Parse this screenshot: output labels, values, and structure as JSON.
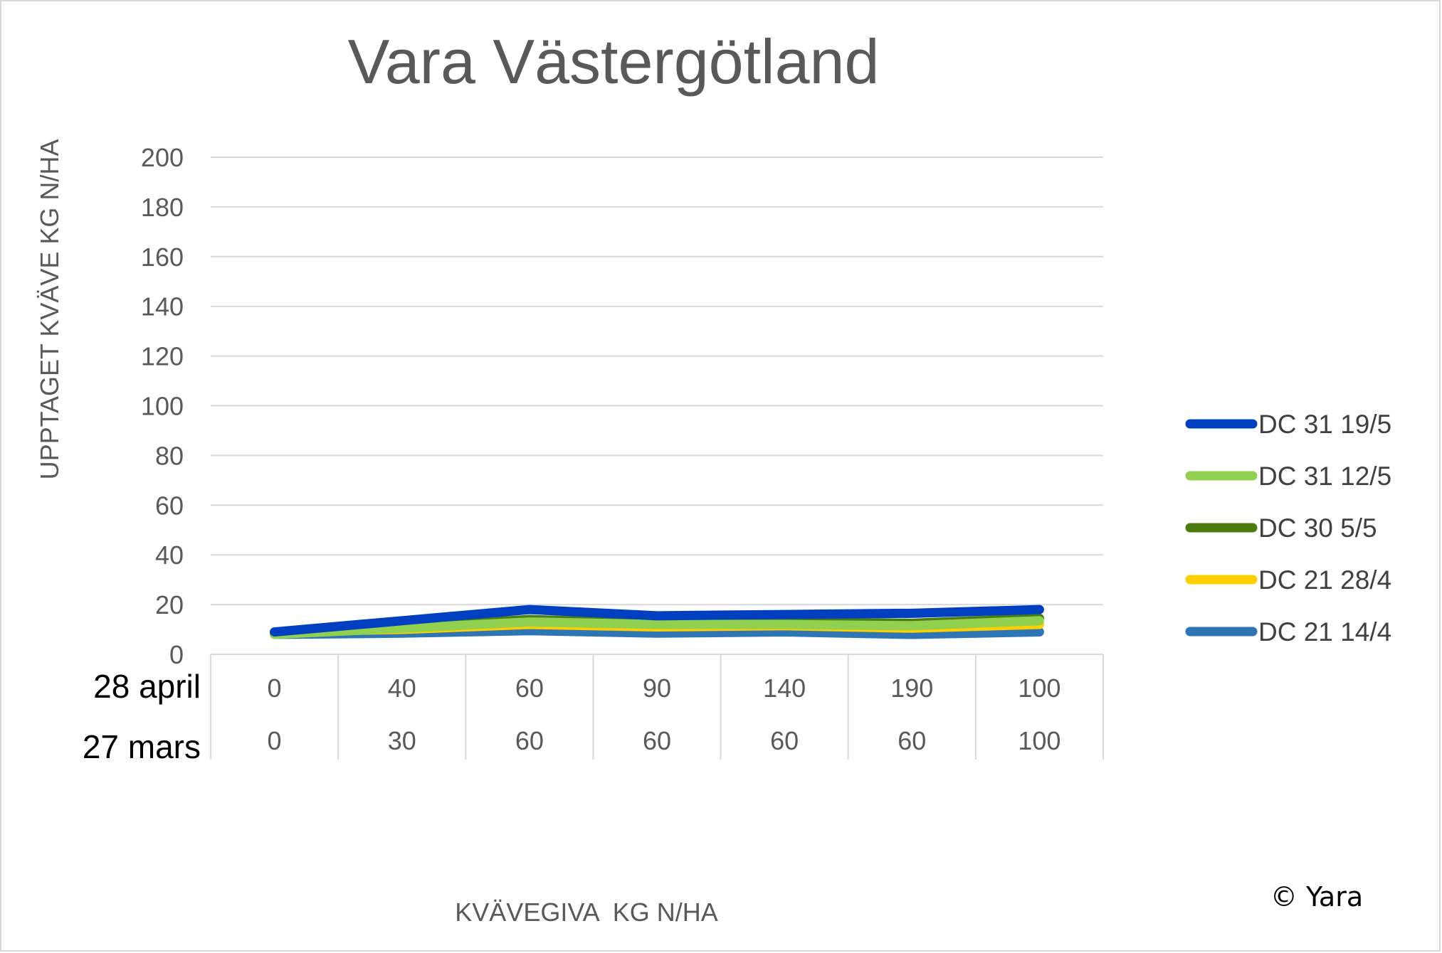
{
  "chart_data": {
    "type": "line",
    "title": "Vara Västergötland",
    "ylabel": "UPPTAGET KVÄVE KG N/HA",
    "xlabel": "KVÄVEGIVA  KG N/HA",
    "ylim": [
      0,
      200
    ],
    "y_ticks": [
      "0",
      "20",
      "40",
      "60",
      "80",
      "100",
      "120",
      "140",
      "160",
      "180",
      "200"
    ],
    "grid": true,
    "legend_position": "right",
    "category_rows": [
      {
        "label": "28 april",
        "values": [
          "0",
          "40",
          "60",
          "90",
          "140",
          "190",
          "100"
        ]
      },
      {
        "label": "27 mars",
        "values": [
          "0",
          "30",
          "60",
          "60",
          "60",
          "60",
          "100"
        ]
      }
    ],
    "series": [
      {
        "name": "DC 21 14/4",
        "color": "#2e75b6",
        "values": [
          8,
          8.5,
          9.5,
          8.5,
          9,
          8,
          9
        ]
      },
      {
        "name": "DC 21 28/4",
        "color": "#ffd000",
        "values": [
          9,
          10,
          12,
          11,
          11.5,
          10.5,
          12
        ]
      },
      {
        "name": "DC 30 5/5",
        "color": "#4a7c10",
        "values": [
          8.5,
          11,
          14,
          12.5,
          13,
          12.5,
          14.5
        ]
      },
      {
        "name": "DC 31 12/5",
        "color": "#92d050",
        "values": [
          8,
          10.5,
          13,
          12,
          12,
          11.5,
          13.5
        ]
      },
      {
        "name": "DC 31 19/5",
        "color": "#0040c0",
        "values": [
          9,
          13.5,
          18,
          15.5,
          16,
          16.5,
          18
        ]
      }
    ],
    "legend_order": [
      "DC 31 19/5",
      "DC 31 12/5",
      "DC 30 5/5",
      "DC 21 28/4",
      "DC 21 14/4"
    ]
  },
  "copyright": "© Yara"
}
